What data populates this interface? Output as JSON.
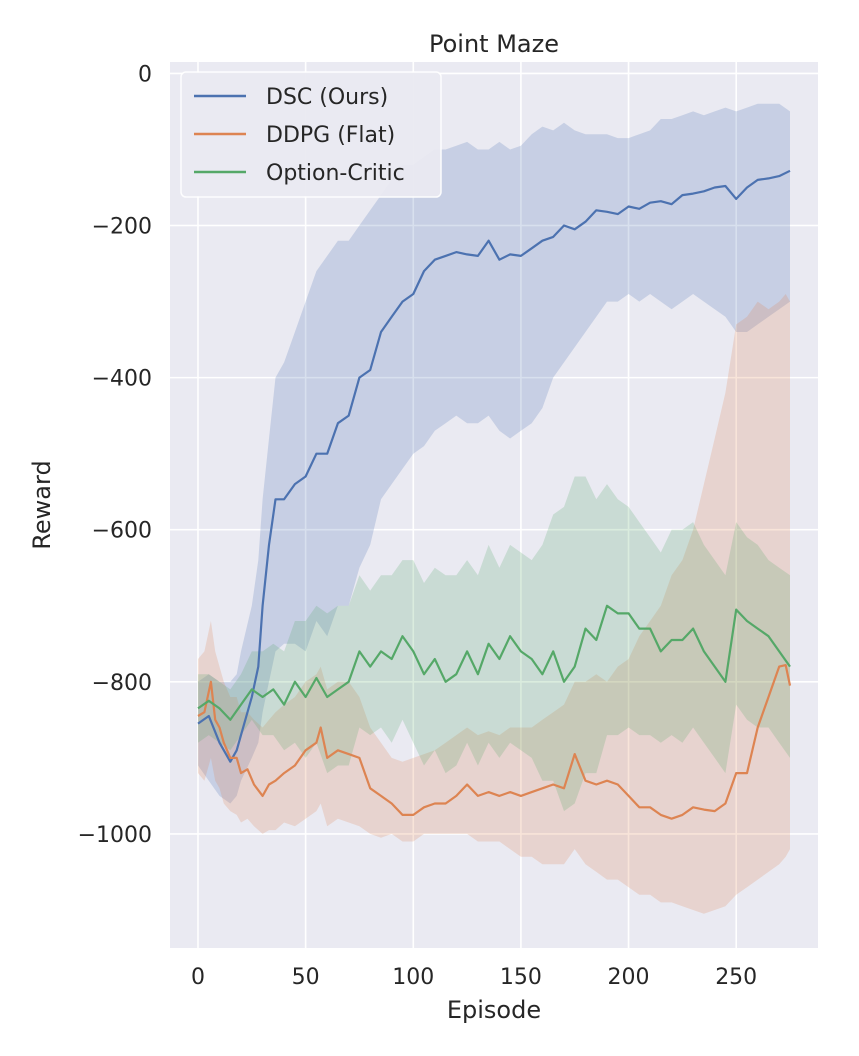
{
  "chart_data": {
    "type": "line",
    "title": "Point Maze",
    "xlabel": "Episode",
    "ylabel": "Reward",
    "xlim": [
      -13,
      288
    ],
    "ylim": [
      -1150,
      15
    ],
    "xticks": [
      0,
      50,
      100,
      150,
      200,
      250
    ],
    "yticks": [
      0,
      -200,
      -400,
      -600,
      -800,
      -1000
    ],
    "grid": true,
    "legend_position": "top-left",
    "series": [
      {
        "name": "DSC (Ours)",
        "color": "#4c72b0",
        "x": [
          0,
          5,
          10,
          15,
          18,
          20,
          25,
          28,
          30,
          33,
          36,
          40,
          45,
          50,
          55,
          60,
          65,
          70,
          75,
          80,
          85,
          90,
          95,
          100,
          105,
          110,
          115,
          120,
          125,
          130,
          135,
          140,
          145,
          150,
          155,
          160,
          165,
          170,
          175,
          180,
          185,
          190,
          195,
          200,
          205,
          210,
          215,
          220,
          225,
          230,
          235,
          240,
          245,
          250,
          255,
          260,
          265,
          270,
          275
        ],
        "y": [
          -855,
          -845,
          -880,
          -905,
          -890,
          -870,
          -820,
          -780,
          -700,
          -620,
          -560,
          -560,
          -540,
          -530,
          -500,
          -500,
          -460,
          -450,
          -400,
          -390,
          -340,
          -320,
          -300,
          -290,
          -260,
          -245,
          -240,
          -235,
          -238,
          -240,
          -220,
          -245,
          -238,
          -240,
          -230,
          -220,
          -215,
          -200,
          -205,
          -195,
          -180,
          -182,
          -185,
          -175,
          -178,
          -170,
          -168,
          -172,
          -160,
          -158,
          -155,
          -150,
          -148,
          -165,
          -150,
          -140,
          -138,
          -135,
          -128
        ],
        "upper": [
          -800,
          -790,
          -800,
          -800,
          -790,
          -760,
          -700,
          -640,
          -560,
          -480,
          -400,
          -380,
          -340,
          -300,
          -260,
          -240,
          -220,
          -220,
          -200,
          -180,
          -160,
          -140,
          -120,
          -120,
          -110,
          -100,
          -100,
          -95,
          -90,
          -100,
          -100,
          -90,
          -100,
          -95,
          -80,
          -70,
          -75,
          -65,
          -75,
          -80,
          -80,
          -80,
          -85,
          -85,
          -80,
          -75,
          -60,
          -60,
          -55,
          -50,
          -55,
          -50,
          -45,
          -50,
          -45,
          -40,
          -40,
          -40,
          -50
        ],
        "lower": [
          -910,
          -930,
          -950,
          -960,
          -950,
          -930,
          -900,
          -880,
          -840,
          -800,
          -760,
          -750,
          -750,
          -760,
          -720,
          -740,
          -700,
          -700,
          -650,
          -620,
          -560,
          -540,
          -520,
          -500,
          -490,
          -470,
          -460,
          -450,
          -460,
          -460,
          -450,
          -470,
          -480,
          -470,
          -460,
          -440,
          -400,
          -380,
          -360,
          -340,
          -320,
          -300,
          -300,
          -290,
          -300,
          -290,
          -300,
          -310,
          -300,
          -290,
          -300,
          -310,
          -320,
          -340,
          -340,
          -330,
          -320,
          -310,
          -300
        ]
      },
      {
        "name": "DDPG (Flat)",
        "color": "#dd8452",
        "x": [
          0,
          3,
          6,
          8,
          10,
          12,
          15,
          18,
          20,
          23,
          26,
          30,
          33,
          36,
          40,
          45,
          50,
          55,
          57,
          60,
          65,
          70,
          75,
          80,
          85,
          90,
          95,
          100,
          105,
          110,
          115,
          120,
          125,
          130,
          135,
          140,
          145,
          150,
          155,
          160,
          165,
          170,
          175,
          180,
          185,
          190,
          195,
          200,
          205,
          210,
          215,
          220,
          225,
          230,
          235,
          240,
          245,
          250,
          255,
          260,
          265,
          270,
          273,
          275
        ],
        "y": [
          -845,
          -840,
          -800,
          -850,
          -860,
          -880,
          -900,
          -900,
          -920,
          -915,
          -935,
          -950,
          -935,
          -930,
          -920,
          -910,
          -890,
          -880,
          -860,
          -900,
          -890,
          -895,
          -900,
          -940,
          -950,
          -960,
          -975,
          -975,
          -965,
          -960,
          -960,
          -950,
          -935,
          -950,
          -945,
          -950,
          -945,
          -950,
          -945,
          -940,
          -935,
          -940,
          -895,
          -930,
          -935,
          -930,
          -935,
          -950,
          -965,
          -965,
          -975,
          -980,
          -975,
          -965,
          -968,
          -970,
          -960,
          -920,
          -920,
          -860,
          -820,
          -780,
          -778,
          -805
        ],
        "upper": [
          -770,
          -760,
          -720,
          -760,
          -780,
          -800,
          -820,
          -820,
          -840,
          -840,
          -850,
          -860,
          -850,
          -840,
          -830,
          -820,
          -800,
          -790,
          -780,
          -810,
          -800,
          -800,
          -820,
          -860,
          -880,
          -900,
          -905,
          -900,
          -895,
          -890,
          -880,
          -870,
          -860,
          -870,
          -865,
          -870,
          -860,
          -860,
          -860,
          -850,
          -840,
          -830,
          -800,
          -800,
          -790,
          -800,
          -780,
          -770,
          -740,
          -720,
          -700,
          -660,
          -640,
          -600,
          -540,
          -480,
          -420,
          -330,
          -320,
          -300,
          -310,
          -300,
          -290,
          -300
        ],
        "lower": [
          -920,
          -930,
          -900,
          -930,
          -940,
          -960,
          -970,
          -975,
          -985,
          -980,
          -990,
          -1000,
          -995,
          -995,
          -985,
          -990,
          -980,
          -970,
          -960,
          -990,
          -980,
          -985,
          -990,
          -1000,
          -1005,
          -1000,
          -1010,
          -1010,
          -1000,
          -1000,
          -1000,
          -1000,
          -1000,
          -1010,
          -1010,
          -1010,
          -1020,
          -1030,
          -1030,
          -1040,
          -1040,
          -1040,
          -1020,
          -1040,
          -1050,
          -1060,
          -1060,
          -1070,
          -1080,
          -1080,
          -1090,
          -1090,
          -1095,
          -1100,
          -1105,
          -1100,
          -1095,
          -1080,
          -1070,
          -1060,
          -1050,
          -1040,
          -1030,
          -1020
        ]
      },
      {
        "name": "Option-Critic",
        "color": "#55a868",
        "x": [
          0,
          5,
          10,
          15,
          20,
          25,
          30,
          35,
          40,
          45,
          50,
          55,
          60,
          65,
          70,
          75,
          80,
          85,
          90,
          95,
          100,
          105,
          110,
          115,
          120,
          125,
          130,
          135,
          140,
          145,
          150,
          155,
          160,
          165,
          170,
          175,
          180,
          185,
          190,
          195,
          200,
          205,
          210,
          215,
          220,
          225,
          230,
          235,
          240,
          245,
          250,
          255,
          260,
          265,
          270,
          275
        ],
        "y": [
          -835,
          -825,
          -835,
          -850,
          -830,
          -810,
          -820,
          -810,
          -830,
          -800,
          -820,
          -795,
          -820,
          -810,
          -800,
          -760,
          -780,
          -760,
          -770,
          -740,
          -760,
          -790,
          -770,
          -800,
          -790,
          -760,
          -790,
          -750,
          -770,
          -740,
          -760,
          -770,
          -790,
          -760,
          -800,
          -780,
          -730,
          -745,
          -700,
          -710,
          -710,
          -730,
          -730,
          -760,
          -745,
          -745,
          -730,
          -760,
          -780,
          -800,
          -705,
          -720,
          -730,
          -740,
          -760,
          -780
        ],
        "upper": [
          -790,
          -790,
          -800,
          -810,
          -790,
          -760,
          -760,
          -750,
          -760,
          -720,
          -720,
          -700,
          -710,
          -700,
          -700,
          -660,
          -680,
          -660,
          -660,
          -640,
          -640,
          -670,
          -650,
          -660,
          -660,
          -640,
          -660,
          -620,
          -650,
          -620,
          -630,
          -640,
          -620,
          -580,
          -570,
          -530,
          -530,
          -560,
          -540,
          -560,
          -570,
          -590,
          -610,
          -630,
          -600,
          -600,
          -590,
          -620,
          -640,
          -660,
          -590,
          -610,
          -620,
          -640,
          -650,
          -660
        ],
        "lower": [
          -880,
          -870,
          -880,
          -890,
          -870,
          -850,
          -870,
          -870,
          -890,
          -880,
          -900,
          -880,
          -920,
          -910,
          -910,
          -860,
          -870,
          -860,
          -880,
          -850,
          -880,
          -910,
          -890,
          -920,
          -910,
          -880,
          -910,
          -880,
          -900,
          -880,
          -890,
          -900,
          -930,
          -930,
          -970,
          -960,
          -920,
          -920,
          -870,
          -870,
          -860,
          -870,
          -870,
          -880,
          -870,
          -880,
          -860,
          -880,
          -900,
          -920,
          -830,
          -850,
          -860,
          -860,
          -880,
          -900
        ]
      }
    ]
  }
}
